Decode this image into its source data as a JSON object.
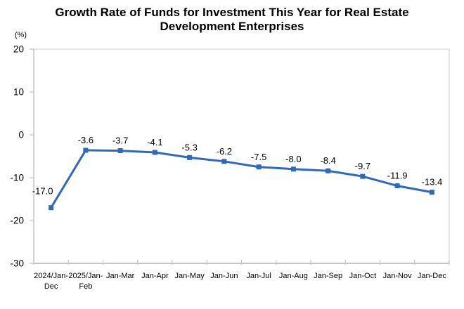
{
  "chart_data": {
    "type": "line",
    "title": "Growth Rate of Funds for Investment This Year for Real Estate\nDevelopment Enterprises",
    "unit_label": "(%)",
    "categories": [
      "2024/Jan-\nDec",
      "2025/Jan-\nFeb",
      "Jan-Mar",
      "Jan-Apr",
      "Jan-May",
      "Jan-Jun",
      "Jan-Jul",
      "Jan-Aug",
      "Jan-Sep",
      "Jan-Oct",
      "Jan-Nov",
      "Jan-Dec"
    ],
    "series": [
      {
        "values": [
          -17.0,
          -3.6,
          -3.7,
          -4.1,
          -5.3,
          -6.2,
          -7.5,
          -8.0,
          -8.4,
          -9.7,
          -11.9,
          -13.4
        ],
        "labels": [
          "-17.0",
          "-3.6",
          "-3.7",
          "-4.1",
          "-5.3",
          "-6.2",
          "-7.5",
          "-8.0",
          "-8.4",
          "-9.7",
          "-11.9",
          "-13.4"
        ],
        "color": "#2D69BE"
      }
    ],
    "ylim": [
      -30,
      20
    ],
    "yticks": [
      20,
      10,
      0,
      -10,
      -20,
      -30
    ],
    "grid": false,
    "legend": "none",
    "marker": "square",
    "colors": {
      "line": "#2D69BE",
      "plot_border": "#D9D9D9",
      "y_axis": "#BFBFBF",
      "x_axis": "#A6A6A6",
      "tick": "#C6C6C6"
    }
  }
}
